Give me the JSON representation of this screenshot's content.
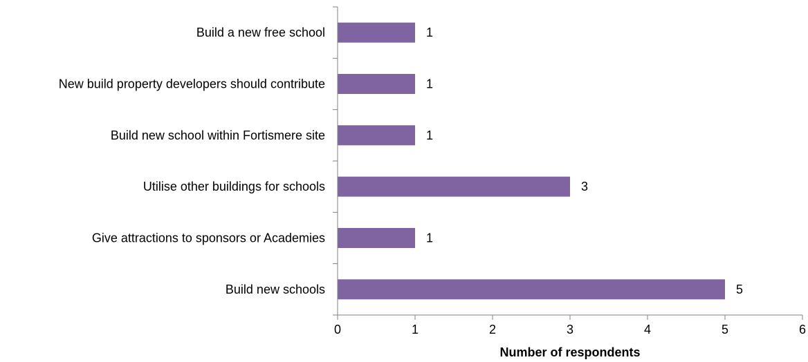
{
  "chart_data": {
    "type": "bar",
    "orientation": "horizontal",
    "categories": [
      "Build a new free school",
      "New build property developers should contribute",
      "Build new school within Fortismere site",
      "Utilise other buildings for schools",
      "Give attractions to sponsors or Academies",
      "Build new schools"
    ],
    "values": [
      1,
      1,
      1,
      3,
      1,
      5
    ],
    "xlabel": "Number of respondents",
    "ylabel": "",
    "xlim": [
      0,
      6
    ],
    "xticks": [
      "0",
      "1",
      "2",
      "3",
      "4",
      "5",
      "6"
    ],
    "grid": false,
    "legend": "none",
    "bar_color": "#8064A2"
  }
}
